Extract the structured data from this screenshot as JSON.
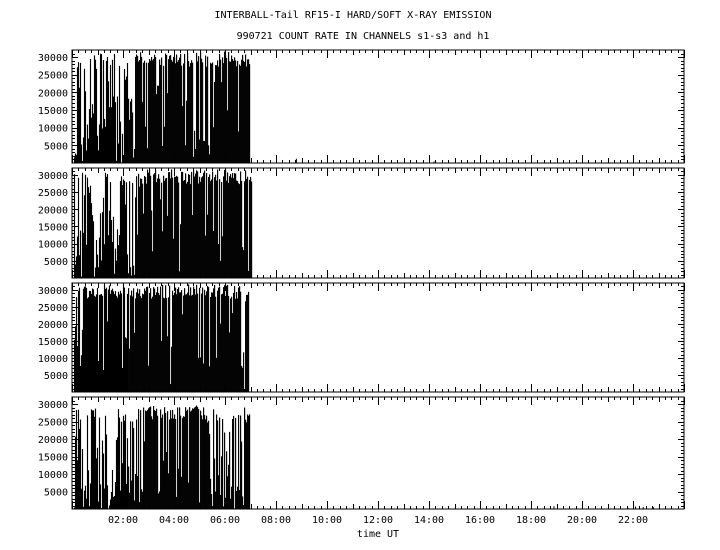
{
  "title": "INTERBALL-Tail RF15-I HARD/SOFT X-RAY EMISSION",
  "subtitle": "990721  COUNT RATE IN CHANNELS s1-s3 and h1",
  "chart_data": {
    "type": "area",
    "title": "INTERBALL-Tail RF15-I HARD/SOFT X-RAY EMISSION",
    "subtitle": "990721  COUNT RATE IN CHANNELS s1-s3 and h1",
    "xlabel": "time UT",
    "xlim_hours": [
      0,
      24
    ],
    "x_tick_labels": [
      "02:00",
      "04:00",
      "06:00",
      "08:00",
      "10:00",
      "12:00",
      "14:00",
      "16:00",
      "18:00",
      "20:00",
      "22:00"
    ],
    "x_tick_hours": [
      2,
      4,
      6,
      8,
      10,
      12,
      14,
      16,
      18,
      20,
      22
    ],
    "ylim": [
      0,
      32000
    ],
    "y_tick_labels": [
      "5000",
      "10000",
      "15000",
      "20000",
      "25000",
      "30000"
    ],
    "y_tick_values": [
      5000,
      10000,
      15000,
      20000,
      25000,
      30000
    ],
    "grid": false,
    "color": "#000000",
    "panels": [
      {
        "channel": "s1",
        "data_start_hour": 0.1,
        "data_end_hour": 7.0,
        "dense_high_start_hour": 2.6,
        "dense_high_end_hour": 6.9,
        "typical_peak": 31000,
        "sparse_points": [
          [
            8.8,
            1200
          ],
          [
            14.2,
            400
          ]
        ]
      },
      {
        "channel": "s2",
        "data_start_hour": 0.1,
        "data_end_hour": 7.05,
        "dense_high_start_hour": 2.7,
        "dense_high_end_hour": 6.9,
        "typical_peak": 31000,
        "sparse_points": []
      },
      {
        "channel": "s3",
        "data_start_hour": 0.1,
        "data_end_hour": 6.95,
        "dense_high_start_hour": 0.3,
        "dense_high_end_hour": 6.6,
        "typical_peak": 31000,
        "sparse_points": []
      },
      {
        "channel": "h1",
        "data_start_hour": 0.1,
        "data_end_hour": 7.0,
        "dense_high_start_hour": 2.8,
        "dense_high_end_hour": 5.3,
        "typical_peak": 29000,
        "sparse_points": [
          [
            18.9,
            800
          ],
          [
            21.8,
            400
          ],
          [
            22.1,
            700
          ],
          [
            22.4,
            600
          ],
          [
            22.8,
            500
          ]
        ]
      }
    ]
  }
}
